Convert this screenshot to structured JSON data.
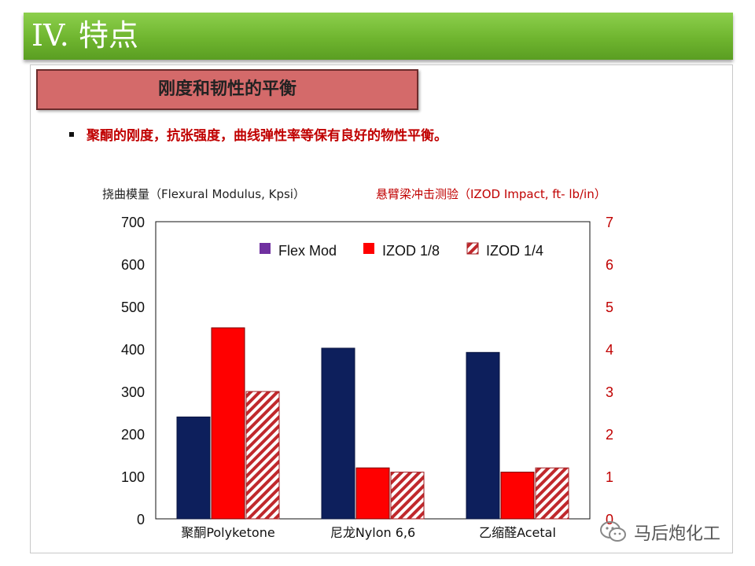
{
  "header": {
    "title": "IV. 特点"
  },
  "section": {
    "title": "刚度和韧性的平衡"
  },
  "bullet": {
    "text": "聚酮的刚度，抗张强度，曲线弹性率等保有良好的物性平衡。"
  },
  "watermark": {
    "text": "马后炮化工",
    "icon": "wechat-icon"
  },
  "colors": {
    "flex": "#0d1f5c",
    "izod18": "#ff0000",
    "izod14_stripe": "#c0282c",
    "right_axis": "#c00000",
    "header": "#6fb52f"
  },
  "chart_data": {
    "type": "bar",
    "left_axis_title": "挠曲模量（Flexural Modulus, Kpsi）",
    "right_axis_title": "悬臂梁冲击测验（IZOD Impact, ft- lb/in）",
    "categories": [
      "聚酮Polyketone",
      "尼龙Nylon 6,6",
      "乙缩醛Acetal"
    ],
    "left_ylim": [
      0,
      700
    ],
    "right_ylim": [
      0,
      7
    ],
    "left_ticks": [
      "0",
      "100",
      "200",
      "300",
      "400",
      "500",
      "600",
      "700"
    ],
    "right_ticks": [
      "0",
      "1",
      "2",
      "3",
      "4",
      "5",
      "6",
      "7"
    ],
    "series": [
      {
        "name": "Flex Mod",
        "axis": "left",
        "values": [
          240,
          402,
          392
        ]
      },
      {
        "name": "IZOD 1/8",
        "axis": "right",
        "values": [
          4.5,
          1.2,
          1.1
        ]
      },
      {
        "name": "IZOD 1/4",
        "axis": "right",
        "values": [
          3.0,
          1.1,
          1.2
        ]
      }
    ],
    "legend_position": "top",
    "grid": false
  }
}
